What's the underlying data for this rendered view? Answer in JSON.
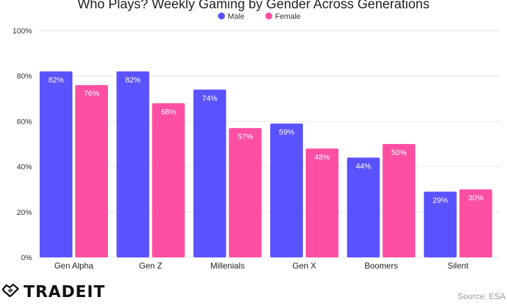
{
  "chart_data": {
    "type": "bar",
    "title": "Who Plays? Weekly Gaming by Gender Across Generations",
    "categories": [
      "Gen Alpha",
      "Gen Z",
      "Millenials",
      "Gen X",
      "Boomers",
      "Silent"
    ],
    "series": [
      {
        "name": "Male",
        "color": "#5b52ff",
        "values": [
          82,
          82,
          74,
          59,
          44,
          29
        ]
      },
      {
        "name": "Female",
        "color": "#ff4fa2",
        "values": [
          76,
          68,
          57,
          48,
          50,
          30
        ]
      }
    ],
    "value_suffix": "%",
    "ylim": [
      0,
      100
    ],
    "yticks": [
      0,
      20,
      40,
      60,
      80,
      100
    ],
    "ytick_labels": [
      "0%",
      "20%",
      "40%",
      "60%",
      "80%",
      "100%"
    ],
    "grid": true,
    "legend": "top-center"
  },
  "brand": {
    "name": "TRADEIT",
    "icon": "handshake-icon"
  },
  "source": "Source: ESA"
}
